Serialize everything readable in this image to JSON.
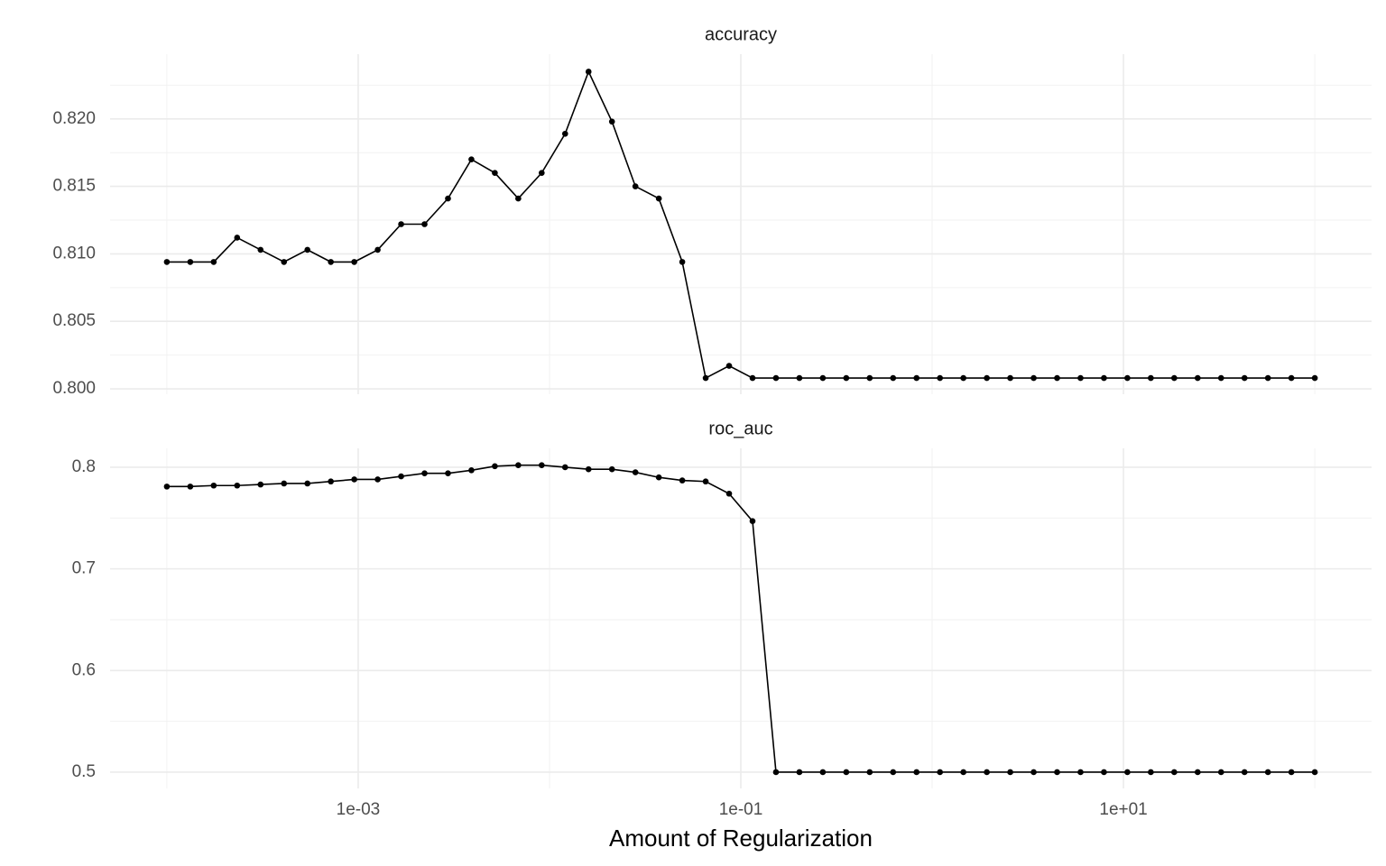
{
  "chart_data": {
    "type": "line",
    "x_label": "Amount of Regularization",
    "log_x": true,
    "grid": true,
    "color": "#000000",
    "x": [
      0.0001,
      0.00013257,
      0.00017575,
      0.000233,
      0.00030888,
      0.00040949,
      0.00054287,
      0.00071969,
      0.0009541,
      0.0012649,
      0.0016768,
      0.002223,
      0.0029471,
      0.0039069,
      0.0051795,
      0.0068665,
      0.009103,
      0.012068,
      0.015999,
      0.02121,
      0.028118,
      0.037276,
      0.049417,
      0.065513,
      0.086851,
      0.11514,
      0.15264,
      0.20236,
      0.26827,
      0.35565,
      0.47149,
      0.62506,
      0.82864,
      1.0985,
      1.4563,
      1.9307,
      2.5595,
      3.3932,
      4.4984,
      5.9636,
      7.906,
      10.481,
      13.895,
      18.421,
      24.421,
      32.375,
      42.919,
      56.899,
      75.431,
      100
    ],
    "xlim": [
      5.05e-05,
      198
    ],
    "xticks": [
      {
        "value": 0.001,
        "label": "1e-03"
      },
      {
        "value": 0.1,
        "label": "1e-01"
      },
      {
        "value": 10,
        "label": "1e+01"
      }
    ],
    "x_minor_ticks": [
      0.0001,
      0.01,
      1,
      100
    ],
    "panels": [
      {
        "title": "accuracy",
        "values": [
          0.8094,
          0.8094,
          0.8094,
          0.8112,
          0.8103,
          0.8094,
          0.8103,
          0.8094,
          0.8094,
          0.8103,
          0.8122,
          0.8122,
          0.8141,
          0.817,
          0.816,
          0.8141,
          0.816,
          0.8189,
          0.8235,
          0.8198,
          0.815,
          0.8141,
          0.8094,
          0.8008,
          0.8017,
          0.8008,
          0.8008,
          0.8008,
          0.8008,
          0.8008,
          0.8008,
          0.8008,
          0.8008,
          0.8008,
          0.8008,
          0.8008,
          0.8008,
          0.8008,
          0.8008,
          0.8008,
          0.8008,
          0.8008,
          0.8008,
          0.8008,
          0.8008,
          0.8008,
          0.8008,
          0.8008,
          0.8008,
          0.8008
        ],
        "ylim": [
          0.7996,
          0.8248
        ],
        "yticks": [
          {
            "value": 0.8,
            "label": "0.800"
          },
          0.805,
          {
            "value": 0.81,
            "label": "0.810"
          },
          0.815,
          {
            "value": 0.82,
            "label": "0.820"
          }
        ],
        "y_minor_ticks": [
          0.8025,
          0.8075,
          0.8125,
          0.8175,
          0.8225
        ]
      },
      {
        "title": "roc_auc",
        "values": [
          0.781,
          0.781,
          0.782,
          0.782,
          0.783,
          0.784,
          0.784,
          0.786,
          0.788,
          0.788,
          0.791,
          0.794,
          0.794,
          0.797,
          0.801,
          0.802,
          0.802,
          0.8,
          0.798,
          0.798,
          0.795,
          0.79,
          0.787,
          0.786,
          0.774,
          0.747,
          0.5,
          0.5,
          0.5,
          0.5,
          0.5,
          0.5,
          0.5,
          0.5,
          0.5,
          0.5,
          0.5,
          0.5,
          0.5,
          0.5,
          0.5,
          0.5,
          0.5,
          0.5,
          0.5,
          0.5,
          0.5,
          0.5,
          0.5,
          0.5
        ],
        "ylim": [
          0.484,
          0.8186
        ],
        "yticks": [
          0.5,
          0.6,
          0.7,
          0.8
        ],
        "y_minor_ticks": [
          0.55,
          0.65,
          0.75
        ]
      }
    ]
  }
}
